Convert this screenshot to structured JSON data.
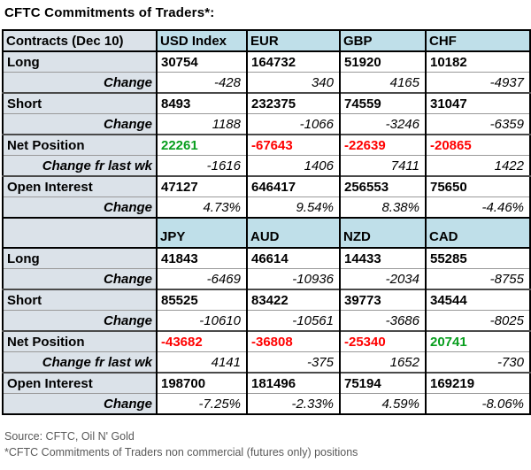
{
  "title": "CFTC Commitments of Traders*:",
  "colors": {
    "header_bg": "#BFDFE9",
    "label_bg": "#DBE2E9",
    "positive": "#089E1E",
    "negative": "#FF0000",
    "footer_text": "#595959"
  },
  "chart_data": {
    "type": "table",
    "title": "CFTC Commitments of Traders*:",
    "sections": [
      {
        "header": [
          "Contracts (Dec 10)",
          "USD Index",
          "EUR",
          "GBP",
          "CHF"
        ],
        "rows": [
          {
            "label": "Long",
            "style": "main",
            "values": [
              "30754",
              "164732",
              "51920",
              "10182"
            ]
          },
          {
            "label": "Change",
            "style": "change",
            "values": [
              "-428",
              "340",
              "4165",
              "-4937"
            ]
          },
          {
            "label": "Short",
            "style": "main",
            "values": [
              "8493",
              "232375",
              "74559",
              "31047"
            ]
          },
          {
            "label": "Change",
            "style": "change",
            "values": [
              "1188",
              "-1066",
              "-3246",
              "-6359"
            ]
          },
          {
            "label": "Net Position",
            "style": "net",
            "values": [
              "22261",
              "-67643",
              "-22639",
              "-20865"
            ]
          },
          {
            "label": "Change fr last wk",
            "style": "change",
            "values": [
              "-1616",
              "1406",
              "7411",
              "1422"
            ]
          },
          {
            "label": "Open Interest",
            "style": "main",
            "values": [
              "47127",
              "646417",
              "256553",
              "75650"
            ]
          },
          {
            "label": "Change",
            "style": "change",
            "values": [
              "4.73%",
              "9.54%",
              "8.38%",
              "-4.46%"
            ]
          }
        ]
      },
      {
        "header": [
          "",
          "JPY",
          "AUD",
          "NZD",
          "CAD"
        ],
        "rows": [
          {
            "label": "Long",
            "style": "main",
            "values": [
              "41843",
              "46614",
              "14433",
              "55285"
            ]
          },
          {
            "label": "Change",
            "style": "change",
            "values": [
              "-6469",
              "-10936",
              "-2034",
              "-8755"
            ]
          },
          {
            "label": "Short",
            "style": "main",
            "values": [
              "85525",
              "83422",
              "39773",
              "34544"
            ]
          },
          {
            "label": "Change",
            "style": "change",
            "values": [
              "-10610",
              "-10561",
              "-3686",
              "-8025"
            ]
          },
          {
            "label": "Net Position",
            "style": "net",
            "values": [
              "-43682",
              "-36808",
              "-25340",
              "20741"
            ]
          },
          {
            "label": "Change fr last wk",
            "style": "change",
            "values": [
              "4141",
              "-375",
              "1652",
              "-730"
            ]
          },
          {
            "label": "Open Interest",
            "style": "main",
            "values": [
              "198700",
              "181496",
              "75194",
              "169219"
            ]
          },
          {
            "label": "Change",
            "style": "change",
            "values": [
              "-7.25%",
              "-2.33%",
              "4.59%",
              "-8.06%"
            ]
          }
        ]
      }
    ]
  },
  "footer": {
    "source": "Source: CFTC, Oil N' Gold",
    "note": "*CFTC Commitments of Traders non commercial (futures only) positions"
  }
}
